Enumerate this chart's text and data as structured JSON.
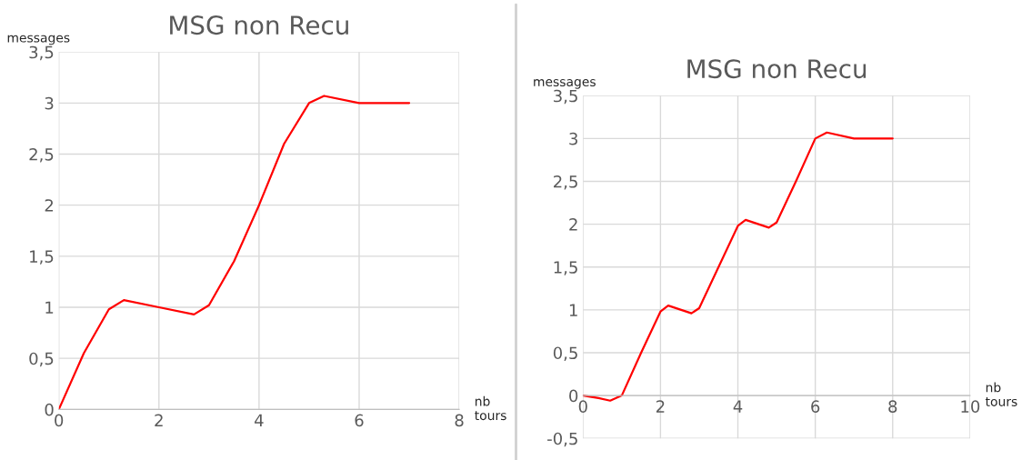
{
  "chart_data": [
    {
      "type": "line",
      "title": "MSG non Recu",
      "xlabel": "nb\ntours",
      "ylabel": "messages",
      "x": [
        0,
        0.5,
        1,
        1.3,
        2,
        2.7,
        3,
        3.5,
        4,
        4.5,
        5,
        5.3,
        6,
        7
      ],
      "series": [
        {
          "color": "#ff0000",
          "values": [
            0,
            0.55,
            0.98,
            1.07,
            1,
            0.93,
            1.02,
            1.45,
            2,
            2.6,
            3,
            3.07,
            3,
            3
          ]
        }
      ],
      "xlim": [
        0,
        8
      ],
      "xticks": [
        0,
        2,
        4,
        6,
        8
      ],
      "ylim": [
        0,
        3.5
      ],
      "yticks": [
        0,
        {
          "value": 0.5,
          "label": "0,5"
        },
        1,
        {
          "value": 1.5,
          "label": "1,5"
        },
        2,
        {
          "value": 2.5,
          "label": "2,5"
        },
        3,
        {
          "value": 3.5,
          "label": "3,5"
        }
      ],
      "grid": true,
      "legend": false,
      "marker": "none",
      "line_style": "solid"
    },
    {
      "type": "line",
      "title": "MSG non Recu",
      "xlabel": "nb\ntours",
      "ylabel": "messages",
      "x": [
        0,
        0.4,
        0.7,
        1,
        1.5,
        2,
        2.2,
        2.8,
        3,
        3.5,
        4,
        4.2,
        4.8,
        5,
        5.5,
        6,
        6.3,
        7,
        8
      ],
      "series": [
        {
          "color": "#ff0000",
          "values": [
            0,
            -0.03,
            -0.06,
            0,
            0.5,
            0.98,
            1.05,
            0.96,
            1.02,
            1.5,
            1.98,
            2.05,
            1.96,
            2.02,
            2.5,
            3,
            3.07,
            3,
            3
          ]
        }
      ],
      "xlim": [
        0,
        10
      ],
      "xticks": [
        0,
        2,
        4,
        6,
        8,
        10
      ],
      "ylim": [
        -0.5,
        3.5
      ],
      "yticks": [
        {
          "value": -0.5,
          "label": "-0,5"
        },
        0,
        {
          "value": 0.5,
          "label": "0,5"
        },
        1,
        {
          "value": 1.5,
          "label": "1,5"
        },
        2,
        {
          "value": 2.5,
          "label": "2,5"
        },
        3,
        {
          "value": 3.5,
          "label": "3,5"
        }
      ],
      "grid": true,
      "legend": false,
      "marker": "none",
      "line_style": "solid"
    }
  ]
}
